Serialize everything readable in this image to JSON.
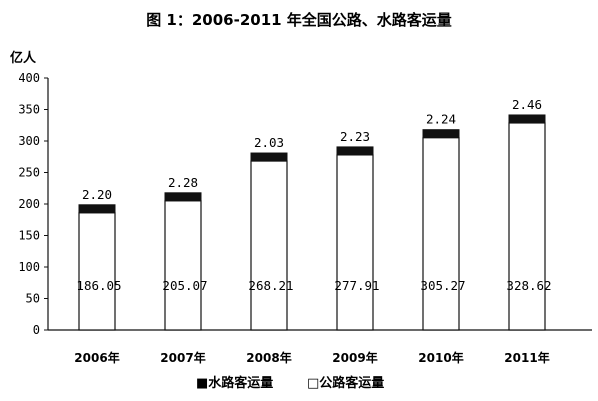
{
  "chart_data": {
    "type": "bar",
    "stacked": true,
    "title": "图 1：2006-2011 年全国公路、水路客运量",
    "ylabel": "亿人",
    "xlabel": "",
    "ylim": [
      0,
      400
    ],
    "yticks": [
      0,
      50,
      100,
      150,
      200,
      250,
      300,
      350,
      400
    ],
    "categories": [
      "2006年",
      "2007年",
      "2008年",
      "2009年",
      "2010年",
      "2011年"
    ],
    "series": [
      {
        "name": "公路客运量",
        "values": [
          186.05,
          205.07,
          268.21,
          277.91,
          305.27,
          328.62
        ],
        "labels": [
          "186.05",
          "205.07",
          "268.21",
          "277.91",
          "305.27",
          "328.62"
        ]
      },
      {
        "name": "水路客运量",
        "values": [
          2.2,
          2.28,
          2.03,
          2.23,
          2.24,
          2.46
        ],
        "labels": [
          "2.20",
          "2.28",
          "2.03",
          "2.23",
          "2.24",
          "2.46"
        ]
      }
    ],
    "legend": {
      "position": "bottom",
      "entries": [
        "■水路客运量",
        "□公路客运量"
      ]
    },
    "grid": false
  }
}
